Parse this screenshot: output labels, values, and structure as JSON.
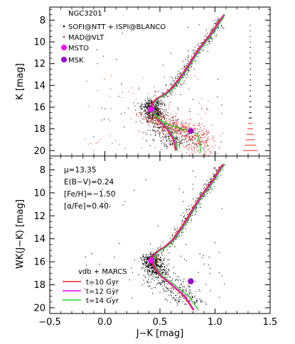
{
  "chart_data": [
    {
      "type": "scatter",
      "panel": "top",
      "title": "NGC3201",
      "xlabel": "",
      "ylabel": "K [mag]",
      "xlim": [
        -0.5,
        1.5
      ],
      "ylim": [
        20.5,
        6.8
      ],
      "y_inverted": true,
      "xticks": [
        -0.5,
        0.0,
        0.5,
        1.0,
        1.5
      ],
      "xtick_labels": [
        "",
        "",
        "",
        "",
        ""
      ],
      "yticks": [
        8,
        10,
        12,
        14,
        16,
        18,
        20
      ],
      "ytick_labels": [
        "8",
        "10",
        "12",
        "14",
        "16",
        "18",
        "20"
      ],
      "legend": [
        {
          "label": "SOFI@NTT + ISPI@BLANCO",
          "marker": "dot",
          "color": "#000000"
        },
        {
          "label": "MAD@VLT",
          "marker": "dot",
          "color": "#e8281e"
        },
        {
          "label": "MSTO",
          "marker": "circle",
          "color": "#ff00ff"
        },
        {
          "label": "MSK",
          "marker": "circle",
          "color": "#9b00c9"
        }
      ],
      "legend_position": "top-left",
      "points": [
        {
          "name": "MSTO",
          "x": 0.42,
          "y": 16.2,
          "color": "#ff00ff"
        },
        {
          "name": "MSK",
          "x": 0.78,
          "y": 18.2,
          "color": "#9b00c9"
        }
      ],
      "error_bars": {
        "x": 1.32,
        "y": [
          8.5,
          9.0,
          9.5,
          10.0,
          10.5,
          11.0,
          11.5,
          12.0,
          12.5,
          13.0,
          13.5,
          14.0,
          14.5,
          15.0,
          15.5,
          16.0,
          16.5,
          17.0,
          17.5,
          18.0,
          18.5,
          19.0,
          19.5,
          20.0
        ],
        "xerr": [
          0.004,
          0.004,
          0.004,
          0.004,
          0.005,
          0.005,
          0.005,
          0.005,
          0.006,
          0.006,
          0.006,
          0.007,
          0.007,
          0.008,
          0.009,
          0.01,
          0.012,
          0.015,
          0.02,
          0.026,
          0.034,
          0.042,
          0.052,
          0.065
        ]
      },
      "isochrones": [
        {
          "name": "t=10 Gyr",
          "color": "#e8281e",
          "x": [
            0.64,
            0.62,
            0.56,
            0.48,
            0.43,
            0.42,
            0.43,
            0.47,
            0.54,
            0.61,
            0.67,
            0.74,
            0.8,
            0.86,
            0.93,
            0.99,
            1.04,
            1.08
          ],
          "y": [
            20.0,
            19.0,
            18.0,
            17.2,
            16.4,
            16.0,
            15.6,
            15.2,
            14.8,
            14.2,
            13.4,
            12.4,
            11.4,
            10.5,
            9.6,
            8.8,
            8.0,
            7.5
          ]
        },
        {
          "name": "t=12 Gyr",
          "color": "#ff00ff",
          "x": [
            0.65,
            0.63,
            0.57,
            0.49,
            0.44,
            0.43,
            0.44,
            0.48,
            0.55,
            0.62,
            0.68,
            0.75,
            0.81,
            0.87,
            0.94,
            1.0,
            1.05,
            1.085
          ],
          "y": [
            20.0,
            19.0,
            18.0,
            17.2,
            16.4,
            16.0,
            15.6,
            15.2,
            14.8,
            14.2,
            13.4,
            12.4,
            11.4,
            10.5,
            9.6,
            8.8,
            8.0,
            7.5
          ]
        },
        {
          "name": "t=14 Gyr",
          "color": "#22cc22",
          "x": [
            0.66,
            0.64,
            0.58,
            0.5,
            0.45,
            0.44,
            0.45,
            0.49,
            0.56,
            0.63,
            0.69,
            0.76,
            0.82,
            0.88,
            0.95,
            1.01,
            1.06,
            1.09
          ],
          "y": [
            20.0,
            19.0,
            18.0,
            17.2,
            16.4,
            16.0,
            15.6,
            15.2,
            14.8,
            14.2,
            13.4,
            12.4,
            11.4,
            10.5,
            9.6,
            8.8,
            8.0,
            7.5
          ]
        }
      ],
      "isochrone_faint_branch": {
        "x": [
          0.42,
          0.5,
          0.6,
          0.7,
          0.78,
          0.84,
          0.86,
          0.87
        ],
        "y": [
          16.4,
          17.2,
          17.7,
          18.0,
          18.2,
          18.5,
          19.2,
          20.2
        ]
      }
    },
    {
      "type": "scatter",
      "panel": "bottom",
      "xlabel": "J−K [mag]",
      "ylabel": "WK(J−K) [mag]",
      "xlim": [
        -0.5,
        1.5
      ],
      "ylim": [
        20.5,
        6.8
      ],
      "y_inverted": true,
      "xticks": [
        -0.5,
        0.0,
        0.5,
        1.0,
        1.5
      ],
      "xtick_labels": [
        "−0.5",
        "0.0",
        "0.5",
        "1.0",
        "1.5"
      ],
      "yticks": [
        8,
        10,
        12,
        14,
        16,
        18,
        20
      ],
      "ytick_labels": [
        "8",
        "10",
        "12",
        "14",
        "16",
        "18",
        "20"
      ],
      "annotations": [
        "μ=13.35",
        "E(B−V)=0.24",
        "[Fe/H]=−1.50",
        "[α/Fe]=0.40"
      ],
      "legend_title": "vdb + MARCS",
      "legend": [
        {
          "label": "t=10 Gyr",
          "color": "#e8281e"
        },
        {
          "label": "t=12 Gyr",
          "color": "#ff00ff"
        },
        {
          "label": "t=14 Gyr",
          "color": "#22cc22"
        }
      ],
      "legend_position": "bottom-left",
      "points": [
        {
          "name": "MSTO",
          "x": 0.42,
          "y": 15.9,
          "color": "#ff00ff"
        },
        {
          "name": "MSK",
          "x": 0.78,
          "y": 17.7,
          "color": "#9b00c9"
        }
      ],
      "isochrones": [
        {
          "name": "t=10 Gyr",
          "color": "#e8281e",
          "x": [
            0.8,
            0.72,
            0.6,
            0.5,
            0.44,
            0.42,
            0.43,
            0.47,
            0.54,
            0.61,
            0.67,
            0.74,
            0.8,
            0.86,
            0.93,
            0.99,
            1.03,
            1.07
          ],
          "y": [
            20.2,
            19.0,
            18.0,
            17.2,
            16.4,
            15.9,
            15.5,
            15.1,
            14.7,
            14.1,
            13.3,
            12.3,
            11.3,
            10.4,
            9.5,
            8.7,
            8.0,
            7.5
          ]
        },
        {
          "name": "t=12 Gyr",
          "color": "#ff00ff",
          "x": [
            0.81,
            0.73,
            0.61,
            0.51,
            0.45,
            0.43,
            0.44,
            0.48,
            0.55,
            0.62,
            0.68,
            0.75,
            0.81,
            0.87,
            0.94,
            1.0,
            1.04,
            1.08
          ],
          "y": [
            20.2,
            19.0,
            18.0,
            17.2,
            16.4,
            15.9,
            15.5,
            15.1,
            14.7,
            14.1,
            13.3,
            12.3,
            11.3,
            10.4,
            9.5,
            8.7,
            8.0,
            7.5
          ]
        },
        {
          "name": "t=14 Gyr",
          "color": "#22cc22",
          "x": [
            0.85,
            0.76,
            0.63,
            0.52,
            0.46,
            0.44,
            0.45,
            0.49,
            0.56,
            0.63,
            0.69,
            0.76,
            0.82,
            0.88,
            0.95,
            1.01,
            1.05,
            1.09
          ],
          "y": [
            20.2,
            19.0,
            18.0,
            17.2,
            16.4,
            15.9,
            15.5,
            15.1,
            14.7,
            14.1,
            13.3,
            12.3,
            11.3,
            10.4,
            9.5,
            8.7,
            8.0,
            7.5
          ]
        }
      ]
    }
  ],
  "colors": {
    "observed_ir": "#000000",
    "mad_vlt": "#e8281e",
    "msto": "#ff00ff",
    "msk": "#9b00c9",
    "iso_10": "#e8281e",
    "iso_12": "#ff00ff",
    "iso_14": "#22cc22"
  }
}
